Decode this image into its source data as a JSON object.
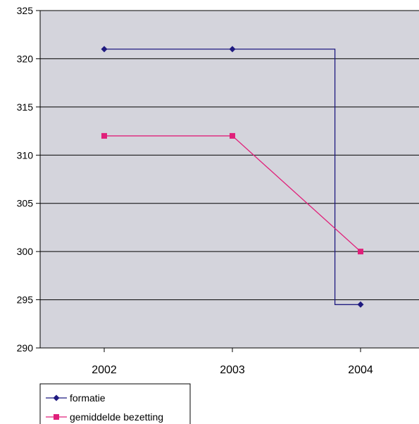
{
  "chart_data": {
    "type": "line",
    "categories": [
      "2002",
      "2003",
      "2004"
    ],
    "ylim": [
      290,
      325
    ],
    "yticks": [
      290,
      295,
      300,
      305,
      310,
      315,
      320,
      325
    ],
    "grid": true,
    "plot_background": "#d4d4dc",
    "legend_position": "bottom-left",
    "series": [
      {
        "name": "formatie",
        "color": "#1f1a80",
        "marker": "diamond",
        "values": [
          321,
          321,
          294.5
        ],
        "path": [
          [
            2002,
            321
          ],
          [
            2003,
            321
          ],
          [
            2003.8,
            321
          ],
          [
            2003.8,
            294.5
          ],
          [
            2004,
            294.5
          ]
        ]
      },
      {
        "name": "gemiddelde bezetting",
        "color": "#e0207a",
        "marker": "square",
        "values": [
          312,
          312,
          300
        ]
      }
    ]
  }
}
